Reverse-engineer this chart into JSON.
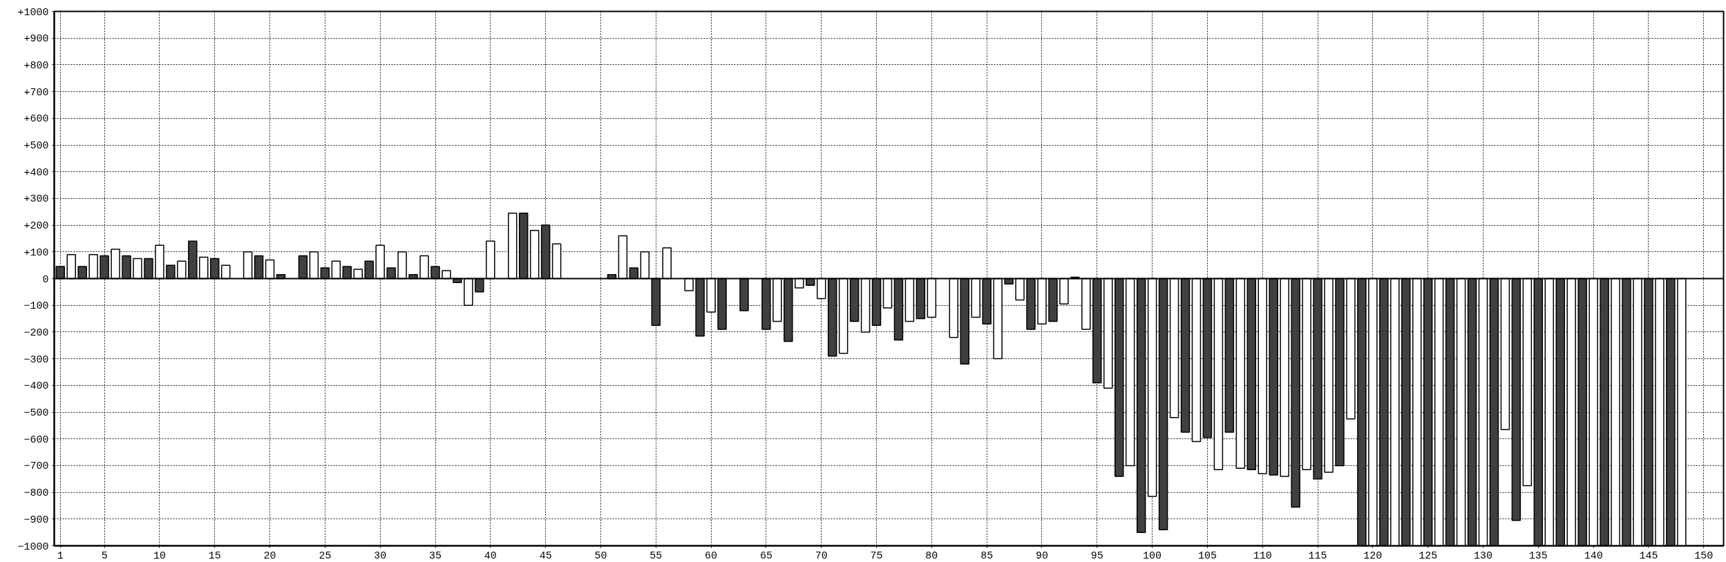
{
  "chart_data": {
    "type": "bar",
    "xlim": [
      0.45,
      151.8
    ],
    "xticks": [
      1,
      5,
      10,
      15,
      20,
      25,
      30,
      35,
      40,
      45,
      50,
      55,
      60,
      65,
      70,
      75,
      80,
      85,
      90,
      95,
      100,
      105,
      110,
      115,
      120,
      125,
      130,
      135,
      140,
      145,
      150
    ],
    "ylim": [
      -1000,
      1000
    ],
    "yticks": [
      {
        "value": 1000,
        "label": "+1000"
      },
      {
        "value": 900,
        "label": "+900"
      },
      {
        "value": 800,
        "label": "+800"
      },
      {
        "value": 700,
        "label": "+700"
      },
      {
        "value": 600,
        "label": "+600"
      },
      {
        "value": 500,
        "label": "+500"
      },
      {
        "value": 400,
        "label": "+400"
      },
      {
        "value": 300,
        "label": "+300"
      },
      {
        "value": 200,
        "label": "+200"
      },
      {
        "value": 100,
        "label": "+100"
      },
      0,
      -100,
      -200,
      -300,
      -400,
      -500,
      -600,
      -700,
      -800,
      -900,
      -1000
    ],
    "grid": true,
    "series": [
      {
        "color": "#404040",
        "x": [
          1,
          3,
          5,
          7,
          9,
          11,
          13,
          15,
          17,
          19,
          21,
          23,
          25,
          27,
          29,
          31,
          33,
          35,
          37,
          39,
          41,
          43,
          45,
          47,
          49,
          51,
          53,
          55,
          57,
          59,
          61,
          63,
          65,
          67,
          69,
          71,
          73,
          75,
          77,
          79,
          81,
          83,
          85,
          87,
          89,
          91,
          93,
          95,
          97,
          99,
          101,
          103,
          105,
          107,
          109,
          111,
          113,
          115,
          117,
          119,
          121,
          123,
          125,
          127,
          129,
          131,
          133,
          135,
          137,
          139,
          141,
          143,
          145,
          147
        ],
        "values": [
          45,
          45,
          85,
          85,
          75,
          50,
          140,
          75,
          null,
          85,
          15,
          85,
          40,
          45,
          65,
          40,
          15,
          45,
          -15,
          -50,
          null,
          245,
          200,
          null,
          null,
          15,
          40,
          -175,
          null,
          -215,
          -190,
          -120,
          -190,
          -235,
          -25,
          -290,
          -160,
          -175,
          -230,
          -150,
          null,
          -320,
          -170,
          -20,
          -190,
          -160,
          5,
          -390,
          -740,
          -950,
          -940,
          -575,
          -595,
          -575,
          -715,
          -735,
          -855,
          -750,
          -700,
          -1000,
          -1000,
          -1000,
          -1000,
          -1000,
          -1000,
          -1000,
          -905,
          -1000,
          -1000,
          -1000,
          -1000,
          -1000,
          -1000,
          -1000
        ]
      },
      {
        "color": "#ffffff",
        "x": [
          2,
          4,
          6,
          8,
          10,
          12,
          14,
          16,
          18,
          20,
          22,
          24,
          26,
          28,
          30,
          32,
          34,
          36,
          38,
          40,
          42,
          44,
          46,
          48,
          50,
          52,
          54,
          56,
          58,
          60,
          62,
          64,
          66,
          68,
          70,
          72,
          74,
          76,
          78,
          80,
          82,
          84,
          86,
          88,
          90,
          92,
          94,
          96,
          98,
          100,
          102,
          104,
          106,
          108,
          110,
          112,
          114,
          116,
          118,
          120,
          122,
          124,
          126,
          128,
          130,
          132,
          134,
          136,
          138,
          140,
          142,
          144,
          146,
          148
        ],
        "values": [
          90,
          90,
          110,
          75,
          125,
          65,
          80,
          50,
          100,
          70,
          null,
          100,
          65,
          35,
          125,
          100,
          85,
          30,
          -100,
          140,
          245,
          180,
          130,
          null,
          null,
          160,
          100,
          115,
          -45,
          -125,
          null,
          null,
          -160,
          -35,
          -75,
          -280,
          -200,
          -110,
          -160,
          -145,
          -220,
          -145,
          -300,
          -80,
          -170,
          -95,
          -190,
          -410,
          -700,
          -815,
          -520,
          -610,
          -715,
          -710,
          -730,
          -740,
          -715,
          -725,
          -525,
          -1000,
          -1000,
          -1000,
          -1000,
          -1000,
          -1000,
          -565,
          -775,
          -1000,
          -1000,
          -1000,
          -1000,
          -1000,
          -1000,
          -1000
        ]
      }
    ]
  }
}
